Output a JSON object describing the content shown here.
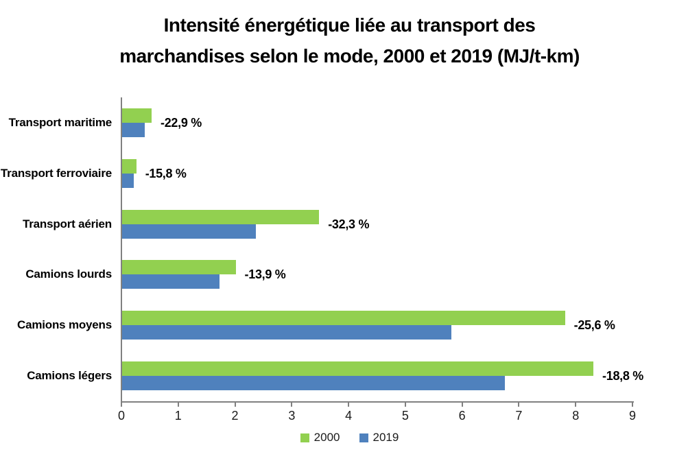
{
  "title_lines": [
    "Intensité énergétique liée au transport des",
    "marchandises selon le mode, 2000 et 2019 (MJ/t-km)"
  ],
  "colors": {
    "series_2000": "#92D050",
    "series_2019": "#4F81BD",
    "axis": "#808080",
    "text": "#000000"
  },
  "chart_data": {
    "type": "bar",
    "orientation": "horizontal",
    "title": "Intensité énergétique liée au transport des marchandises selon le mode, 2000 et 2019 (MJ/t-km)",
    "xlabel": "",
    "ylabel": "",
    "xlim": [
      0,
      9
    ],
    "x_ticks": [
      0,
      1,
      2,
      3,
      4,
      5,
      6,
      7,
      8,
      9
    ],
    "grid": false,
    "legend_position": "bottom-center",
    "categories": [
      "Transport maritime",
      "Transport ferroviaire",
      "Transport aérien",
      "Camions lourds",
      "Camions moyens",
      "Camions légers"
    ],
    "series": [
      {
        "name": "2000",
        "color": "#92D050",
        "values": [
          0.52,
          0.25,
          3.47,
          2.0,
          7.8,
          8.3
        ]
      },
      {
        "name": "2019",
        "color": "#4F81BD",
        "values": [
          0.4,
          0.21,
          2.35,
          1.72,
          5.8,
          6.74
        ]
      }
    ],
    "annotations": [
      "-22,9 %",
      "-15,8 %",
      "-32,3 %",
      "-13,9 %",
      "-25,6 %",
      "-18,8 %"
    ]
  }
}
